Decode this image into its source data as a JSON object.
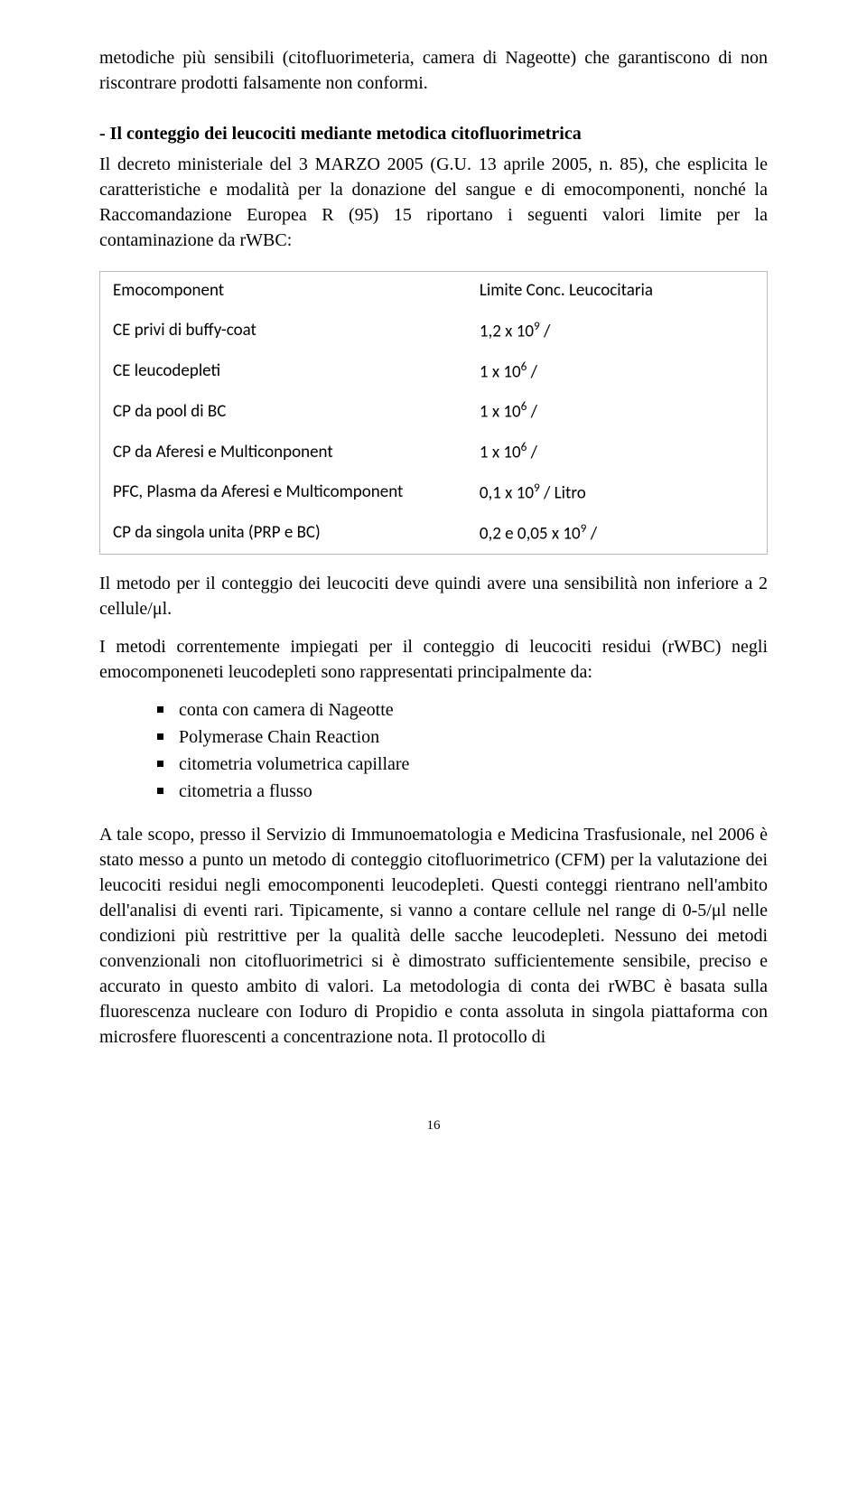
{
  "intro": {
    "p1": "metodiche più sensibili (citofluorimeteria, camera di Nageotte) che garantiscono di non riscontrare prodotti falsamente non conformi."
  },
  "section": {
    "heading": "- Il conteggio dei leucociti mediante metodica citofluorimetrica",
    "p1": "Il decreto ministeriale del 3 MARZO 2005 (G.U. 13 aprile 2005, n. 85), che esplicita le caratteristiche e modalità per la donazione del sangue e di emocomponenti, nonché la Raccomandazione Europea R (95) 15 riportano i seguenti valori limite per la contaminazione da rWBC:"
  },
  "table": {
    "header_left": "Emocomponent",
    "header_right": "Limite Conc. Leucocitaria",
    "rows": [
      {
        "l": "CE privi di buffy-coat",
        "r": "1,2 x 10",
        "exp": "9",
        "suffix": " /"
      },
      {
        "l": "CE leucodepleti",
        "r": "1 x 10",
        "exp": "6",
        "suffix": " /"
      },
      {
        "l": "CP da pool di BC",
        "r": "1 x 10",
        "exp": "6",
        "suffix": " /"
      },
      {
        "l": "CP da Aferesi e Multiconponent",
        "r": "1 x 10",
        "exp": "6",
        "suffix": " /"
      },
      {
        "l": "PFC, Plasma da Aferesi e Multicomponent",
        "r": "0,1 x 10",
        "exp": "9",
        "suffix": " / Litro"
      },
      {
        "l": "CP da singola unita (PRP e BC)",
        "r": "0,2 e 0,05 x 10",
        "exp": "9",
        "suffix": " /"
      }
    ]
  },
  "after_table": {
    "p1": "Il metodo per il conteggio dei leucociti deve quindi avere una sensibilità non inferiore a 2 cellule/μl.",
    "p2": "I metodi correntemente impiegati per il conteggio di leucociti residui (rWBC) negli emocomponeneti leucodepleti sono rappresentati principalmente da:"
  },
  "list": {
    "items": [
      "conta con camera di Nageotte",
      "Polymerase Chain Reaction",
      "citometria volumetrica capillare",
      "citometria a flusso"
    ]
  },
  "final": {
    "p1": "A tale scopo, presso il Servizio di Immunoematologia e Medicina Trasfusionale, nel 2006 è stato messo a punto un metodo di conteggio citofluorimetrico (CFM) per la valutazione dei leucociti residui negli emocomponenti leucodepleti. Questi conteggi rientrano nell'ambito dell'analisi di eventi rari. Tipicamente, si vanno a contare cellule nel range di 0-5/μl nelle condizioni più restrittive per la qualità delle sacche leucodepleti. Nessuno dei metodi convenzionali non citofluorimetrici si è dimostrato sufficientemente sensibile, preciso e accurato in questo ambito di valori. La metodologia di conta dei rWBC è basata sulla fluorescenza nucleare con Ioduro di Propidio e conta assoluta in singola piattaforma con microsfere fluorescenti a concentrazione nota. Il protocollo di"
  },
  "page_number": "16"
}
